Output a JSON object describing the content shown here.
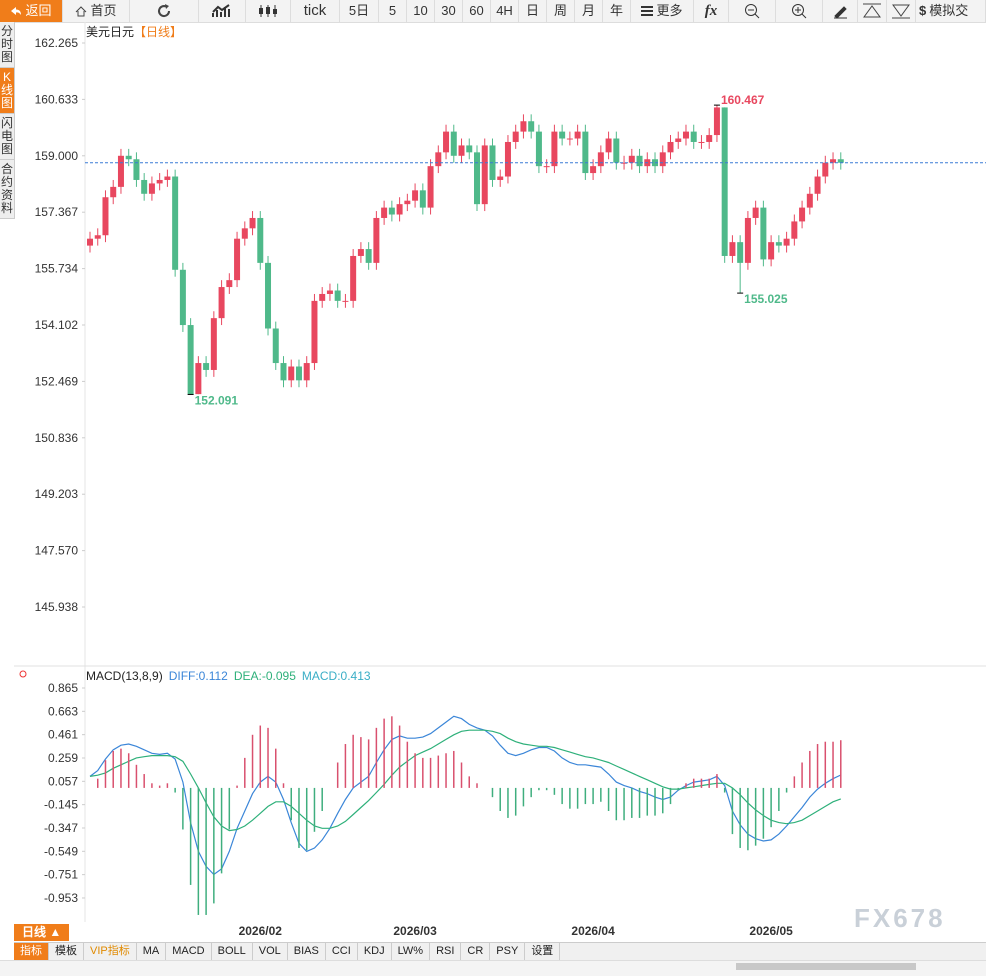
{
  "toolbar": [
    "返回",
    "首页",
    "tick",
    "5日",
    "5",
    "10",
    "30",
    "60",
    "4H",
    "日",
    "周",
    "月",
    "年",
    "更多",
    "模拟交"
  ],
  "side_tabs": [
    "分时图",
    "K线图",
    "闪电图",
    "合约资料"
  ],
  "bottom": {
    "period": "日线 ▲",
    "tabs": [
      "指标",
      "模板",
      "VIP指标",
      "MA",
      "MACD",
      "BOLL",
      "VOL",
      "BIAS",
      "CCI",
      "KDJ",
      "LW%",
      "RSI",
      "CR",
      "PSY",
      "设置"
    ]
  },
  "watermark": "FX678",
  "chart_data": [
    {
      "type": "candlestick",
      "title": "美元日元",
      "subtitle": "【日线】",
      "up_color": "#e8475f",
      "down_color": "#4fb98a",
      "last_price_line": true,
      "categories": [
        null,
        null,
        null,
        null,
        null,
        null,
        null,
        null,
        null,
        null,
        null,
        null,
        null,
        null,
        null,
        null,
        null,
        null,
        null,
        null,
        null,
        null,
        "2026/02",
        null,
        null,
        null,
        null,
        null,
        null,
        null,
        null,
        null,
        null,
        null,
        null,
        null,
        null,
        null,
        null,
        null,
        null,
        null,
        "2026/03",
        null,
        null,
        null,
        null,
        null,
        null,
        null,
        null,
        null,
        null,
        null,
        null,
        null,
        null,
        null,
        null,
        null,
        null,
        null,
        null,
        null,
        null,
        "2026/04",
        null,
        null,
        null,
        null,
        null,
        null,
        null,
        null,
        null,
        null,
        null,
        null,
        null,
        null,
        null,
        null,
        null,
        null,
        null,
        null,
        null,
        null,
        "2026/05",
        null,
        null,
        null,
        null,
        null,
        null,
        null,
        null,
        null
      ],
      "open": [
        156.4,
        156.6,
        156.7,
        157.8,
        158.1,
        159.0,
        158.9,
        158.3,
        157.9,
        158.2,
        158.3,
        158.4,
        155.7,
        154.1,
        152.1,
        153.0,
        152.8,
        154.3,
        155.2,
        155.4,
        156.6,
        156.9,
        157.2,
        155.9,
        154.0,
        153.0,
        152.5,
        152.9,
        152.5,
        153.0,
        154.8,
        155.0,
        155.1,
        154.8,
        154.8,
        156.1,
        156.3,
        155.9,
        157.2,
        157.5,
        157.3,
        157.6,
        157.7,
        158.0,
        157.5,
        158.7,
        159.1,
        159.7,
        159.0,
        159.3,
        159.1,
        157.6,
        159.3,
        158.3,
        158.4,
        159.4,
        159.7,
        160.0,
        159.7,
        158.7,
        158.7,
        159.7,
        159.5,
        159.5,
        159.7,
        158.5,
        158.7,
        159.1,
        159.5,
        158.8,
        158.8,
        159.0,
        158.7,
        158.9,
        158.7,
        159.1,
        159.4,
        159.5,
        159.7,
        159.4,
        159.4,
        159.6,
        160.4,
        156.1,
        156.5,
        155.9,
        157.2,
        157.5,
        156.0,
        156.5,
        156.4,
        156.6,
        157.1,
        157.5,
        157.9,
        158.4,
        158.8,
        158.9
      ],
      "high": [
        156.8,
        156.9,
        158.0,
        158.3,
        159.2,
        159.2,
        159.1,
        158.5,
        158.4,
        158.5,
        158.6,
        158.6,
        155.9,
        154.3,
        153.2,
        153.2,
        154.5,
        155.4,
        155.6,
        156.8,
        157.1,
        157.4,
        157.4,
        156.1,
        154.2,
        153.2,
        153.1,
        153.1,
        153.2,
        155.0,
        155.2,
        155.3,
        155.3,
        155.0,
        156.3,
        156.5,
        156.5,
        157.4,
        157.7,
        157.7,
        157.8,
        157.9,
        158.2,
        158.2,
        158.9,
        159.3,
        159.9,
        159.9,
        159.5,
        159.5,
        159.3,
        159.5,
        159.5,
        158.6,
        159.6,
        159.9,
        160.2,
        160.2,
        159.9,
        158.9,
        159.9,
        159.9,
        159.7,
        159.9,
        159.9,
        158.9,
        159.3,
        159.7,
        159.7,
        159.0,
        159.2,
        159.2,
        159.1,
        159.1,
        159.3,
        159.6,
        159.7,
        159.9,
        159.9,
        159.6,
        159.8,
        160.467,
        160.4,
        156.7,
        156.7,
        157.4,
        157.7,
        157.7,
        156.7,
        156.7,
        156.8,
        157.3,
        157.7,
        158.1,
        158.6,
        159.0,
        159.1,
        159.1
      ],
      "low": [
        156.2,
        156.4,
        156.5,
        157.6,
        157.9,
        158.7,
        158.1,
        157.7,
        157.7,
        158.0,
        158.1,
        155.5,
        153.9,
        152.091,
        152.1,
        152.6,
        152.6,
        154.1,
        155.0,
        155.2,
        156.4,
        156.7,
        155.7,
        153.8,
        152.8,
        152.3,
        152.3,
        152.3,
        152.3,
        152.8,
        154.6,
        154.8,
        154.6,
        154.6,
        154.6,
        155.9,
        155.7,
        155.7,
        157.0,
        157.1,
        157.1,
        157.4,
        157.5,
        157.3,
        157.3,
        158.5,
        158.9,
        158.8,
        158.8,
        158.9,
        157.4,
        157.4,
        158.1,
        158.1,
        158.2,
        159.2,
        159.5,
        159.5,
        158.5,
        158.5,
        158.5,
        159.3,
        159.3,
        159.3,
        158.3,
        158.3,
        158.5,
        158.9,
        158.6,
        158.6,
        158.6,
        158.5,
        158.5,
        158.5,
        158.5,
        158.9,
        159.2,
        159.3,
        159.2,
        159.2,
        159.2,
        159.4,
        155.9,
        155.9,
        155.025,
        155.7,
        157.0,
        155.8,
        155.8,
        156.2,
        156.2,
        156.4,
        156.9,
        157.3,
        157.7,
        158.2,
        158.6,
        158.6
      ],
      "close": [
        156.6,
        156.7,
        157.8,
        158.1,
        159.0,
        158.9,
        158.3,
        157.9,
        158.2,
        158.3,
        158.4,
        155.7,
        154.1,
        152.1,
        153.0,
        152.8,
        154.3,
        155.2,
        155.4,
        156.6,
        156.9,
        157.2,
        155.9,
        154.0,
        153.0,
        152.5,
        152.9,
        152.5,
        153.0,
        154.8,
        155.0,
        155.1,
        154.8,
        154.8,
        156.1,
        156.3,
        155.9,
        157.2,
        157.5,
        157.3,
        157.6,
        157.7,
        158.0,
        157.5,
        158.7,
        159.1,
        159.7,
        159.0,
        159.3,
        159.1,
        157.6,
        159.3,
        158.3,
        158.4,
        159.4,
        159.7,
        160.0,
        159.7,
        158.7,
        158.7,
        159.7,
        159.5,
        159.5,
        159.7,
        158.5,
        158.7,
        159.1,
        159.5,
        158.8,
        158.8,
        159.0,
        158.7,
        158.9,
        158.7,
        159.1,
        159.4,
        159.5,
        159.7,
        159.4,
        159.4,
        159.6,
        160.4,
        156.1,
        156.5,
        155.9,
        157.2,
        157.5,
        156.0,
        156.5,
        156.4,
        156.6,
        157.1,
        157.5,
        157.9,
        158.4,
        158.8,
        158.9,
        158.8
      ],
      "annotations": [
        152.091,
        160.467,
        155.025
      ],
      "ylim": [
        144.259,
        162.873
      ],
      "yticks": [
        162.265,
        160.633,
        {
          "value": 159,
          "label": "159.000"
        },
        157.367,
        155.734,
        154.102,
        152.469,
        150.836,
        149.203,
        {
          "value": 147.57,
          "label": "147.570"
        },
        145.938
      ]
    },
    {
      "type": "macd",
      "title": "MACD(13,8,9)",
      "up_color": "#d9506e",
      "down_color": "#3fae7e",
      "series": [
        {
          "name": "DIFF:0.112",
          "color": "#3b86d8",
          "values": [
            0.1,
            0.15,
            0.25,
            0.33,
            0.37,
            0.38,
            0.36,
            0.33,
            0.3,
            0.29,
            0.3,
            0.25,
            0.05,
            -0.3,
            -0.55,
            -0.68,
            -0.75,
            -0.7,
            -0.55,
            -0.35,
            -0.2,
            -0.05,
            0.05,
            0.1,
            0.05,
            -0.1,
            -0.3,
            -0.48,
            -0.55,
            -0.52,
            -0.45,
            -0.35,
            -0.22,
            -0.1,
            0.0,
            0.05,
            0.1,
            0.22,
            0.33,
            0.42,
            0.45,
            0.43,
            0.43,
            0.44,
            0.47,
            0.52,
            0.57,
            0.62,
            0.6,
            0.55,
            0.52,
            0.5,
            0.45,
            0.37,
            0.3,
            0.28,
            0.3,
            0.33,
            0.35,
            0.35,
            0.32,
            0.26,
            0.22,
            0.2,
            0.2,
            0.19,
            0.18,
            0.12,
            0.05,
            0.02,
            0.0,
            -0.03,
            -0.05,
            -0.08,
            -0.1,
            -0.08,
            -0.02,
            0.02,
            0.05,
            0.06,
            0.07,
            0.1,
            0.02,
            -0.2,
            -0.32,
            -0.4,
            -0.44,
            -0.46,
            -0.45,
            -0.4,
            -0.33,
            -0.25,
            -0.17,
            -0.08,
            -0.01,
            0.04,
            0.08,
            0.112
          ]
        },
        {
          "name": "DEA:-0.095",
          "color": "#2eb07a",
          "values": [
            0.1,
            0.11,
            0.13,
            0.17,
            0.2,
            0.23,
            0.26,
            0.27,
            0.28,
            0.28,
            0.28,
            0.27,
            0.23,
            0.12,
            0.0,
            -0.13,
            -0.25,
            -0.33,
            -0.37,
            -0.36,
            -0.33,
            -0.28,
            -0.22,
            -0.16,
            -0.12,
            -0.12,
            -0.16,
            -0.22,
            -0.28,
            -0.33,
            -0.35,
            -0.35,
            -0.33,
            -0.29,
            -0.23,
            -0.17,
            -0.11,
            -0.04,
            0.03,
            0.11,
            0.18,
            0.23,
            0.28,
            0.31,
            0.34,
            0.38,
            0.42,
            0.46,
            0.49,
            0.5,
            0.5,
            0.5,
            0.49,
            0.47,
            0.43,
            0.4,
            0.38,
            0.37,
            0.36,
            0.36,
            0.35,
            0.33,
            0.31,
            0.29,
            0.27,
            0.26,
            0.24,
            0.22,
            0.19,
            0.16,
            0.13,
            0.1,
            0.07,
            0.04,
            0.01,
            -0.01,
            -0.01,
            0.0,
            0.01,
            0.02,
            0.03,
            0.04,
            0.04,
            0.0,
            -0.06,
            -0.13,
            -0.19,
            -0.24,
            -0.28,
            -0.3,
            -0.31,
            -0.3,
            -0.28,
            -0.24,
            -0.2,
            -0.16,
            -0.12,
            -0.095
          ]
        },
        {
          "name": "MACD:0.413",
          "color": "#3aaec6",
          "kind": "bar",
          "values": [
            0,
            0.08,
            0.24,
            0.32,
            0.34,
            0.3,
            0.2,
            0.12,
            0.04,
            0.02,
            0.04,
            -0.04,
            -0.36,
            -0.84,
            -1.1,
            -1.1,
            -1.0,
            -0.74,
            -0.36,
            0.02,
            0.26,
            0.46,
            0.54,
            0.52,
            0.34,
            0.04,
            -0.28,
            -0.52,
            -0.54,
            -0.38,
            -0.2,
            0.0,
            0.22,
            0.38,
            0.46,
            0.44,
            0.42,
            0.52,
            0.6,
            0.62,
            0.54,
            0.4,
            0.3,
            0.26,
            0.26,
            0.28,
            0.3,
            0.32,
            0.22,
            0.1,
            0.04,
            0.0,
            -0.08,
            -0.2,
            -0.26,
            -0.24,
            -0.16,
            -0.08,
            -0.02,
            -0.02,
            -0.06,
            -0.14,
            -0.18,
            -0.18,
            -0.14,
            -0.14,
            -0.12,
            -0.2,
            -0.28,
            -0.28,
            -0.26,
            -0.26,
            -0.24,
            -0.24,
            -0.22,
            -0.14,
            -0.02,
            0.04,
            0.08,
            0.08,
            0.08,
            0.12,
            -0.04,
            -0.4,
            -0.52,
            -0.54,
            -0.5,
            -0.44,
            -0.34,
            -0.2,
            -0.04,
            0.1,
            0.22,
            0.32,
            0.38,
            0.4,
            0.4,
            0.413
          ]
        }
      ],
      "ylim": [
        -1.187,
        0.917
      ],
      "yticks": [
        0.865,
        0.663,
        0.461,
        0.259,
        0.057,
        -0.145,
        -0.347,
        -0.549,
        -0.751,
        -0.953
      ]
    }
  ]
}
